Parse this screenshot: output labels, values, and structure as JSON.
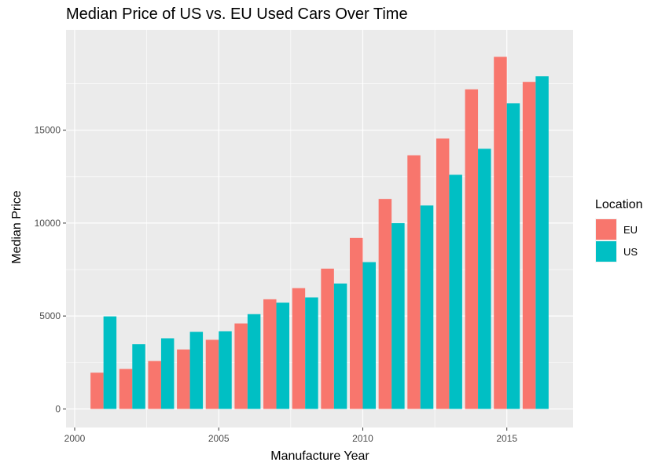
{
  "chart_data": {
    "type": "bar",
    "title": "Median Price of US vs. EU Used Cars Over Time",
    "xlabel": "Manufacture Year",
    "ylabel": "Median Price",
    "x": [
      2001,
      2002,
      2003,
      2004,
      2005,
      2006,
      2007,
      2008,
      2009,
      2010,
      2011,
      2012,
      2013,
      2014,
      2015,
      2016
    ],
    "series": [
      {
        "name": "EU",
        "color": "#F8766D",
        "values": [
          1950,
          2150,
          2580,
          3200,
          3720,
          4600,
          5900,
          6500,
          7550,
          9200,
          11300,
          13650,
          14550,
          17200,
          18950,
          17600
        ]
      },
      {
        "name": "US",
        "color": "#00BFC4",
        "values": [
          4980,
          3480,
          3800,
          4150,
          4180,
          5100,
          5720,
          6000,
          6750,
          7900,
          10000,
          10950,
          12600,
          14000,
          16450,
          17900
        ]
      }
    ],
    "xlim": [
      1999.7,
      2017.3
    ],
    "ylim": [
      -1000,
      20400
    ],
    "x_ticks": [
      "2000",
      "2005",
      "2010",
      "2015"
    ],
    "x_tick_values": [
      2000,
      2005,
      2010,
      2015
    ],
    "y_ticks": [
      "0",
      "5000",
      "10000",
      "15000"
    ],
    "y_tick_values": [
      0,
      5000,
      10000,
      15000
    ],
    "grid": true,
    "legend": {
      "title": "Location",
      "position": "right"
    },
    "panel_background": "#EBEBEB"
  }
}
